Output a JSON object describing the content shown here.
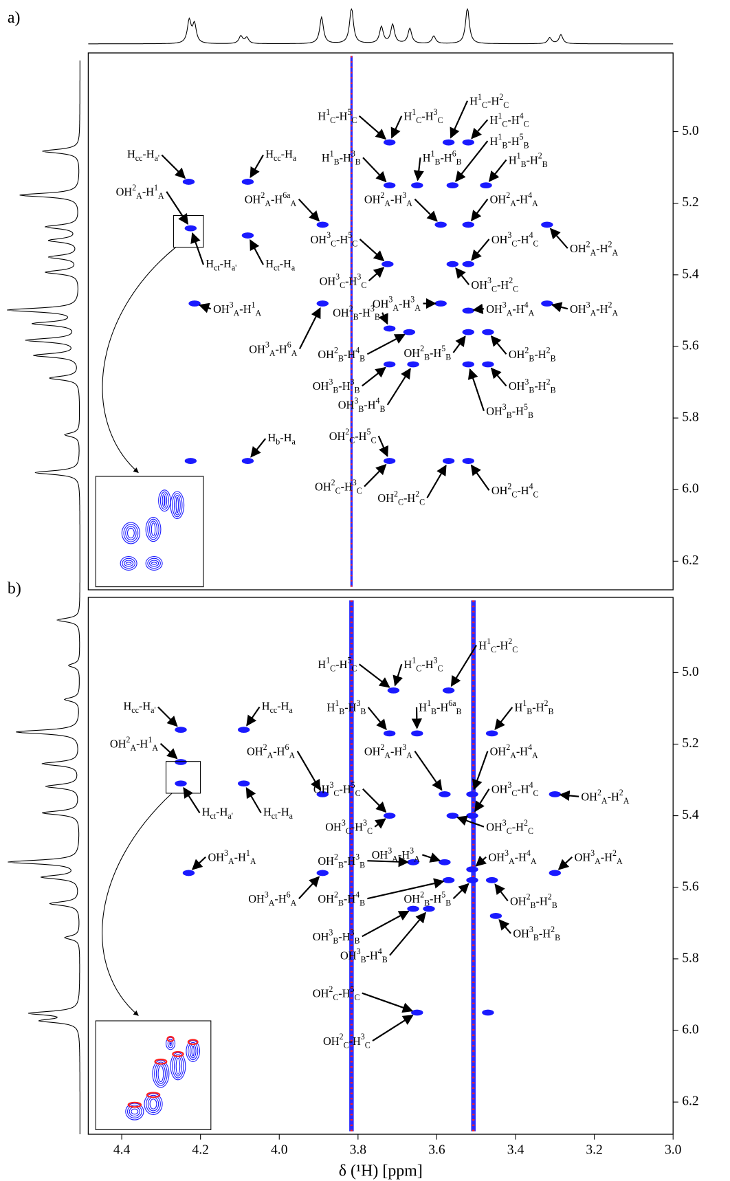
{
  "chart_data": [
    {
      "type": "scatter",
      "panel_label": "a)",
      "ylabel": "δ (¹H) [ppm]",
      "color": "#1a1aff",
      "xlim": [
        4.485,
        3.0
      ],
      "ylim": [
        4.78,
        6.28
      ],
      "yticks": [
        {
          "value": 5,
          "label": "5.0"
        },
        5.2,
        5.4,
        5.6,
        5.8,
        {
          "value": 6,
          "label": "6.0"
        },
        6.2
      ],
      "x": [
        4.23,
        4.08,
        4.225,
        4.08,
        4.215,
        3.89,
        3.72,
        3.67,
        3.72,
        3.57,
        3.52,
        3.72,
        3.65,
        3.56,
        3.475,
        3.59,
        3.52,
        3.32,
        3.725,
        3.56,
        3.52,
        3.59,
        3.52,
        3.32,
        3.52,
        3.47,
        3.72,
        3.66,
        3.52,
        3.47,
        4.08,
        4.225,
        3.72,
        3.57,
        3.52,
        3.89
      ],
      "y": [
        5.14,
        5.14,
        5.27,
        5.29,
        5.48,
        5.48,
        5.55,
        5.56,
        5.03,
        5.03,
        5.03,
        5.15,
        5.15,
        5.15,
        5.15,
        5.26,
        5.26,
        5.26,
        5.37,
        5.37,
        5.37,
        5.48,
        5.5,
        5.48,
        5.56,
        5.56,
        5.65,
        5.65,
        5.65,
        5.65,
        5.92,
        5.92,
        5.92,
        5.92,
        5.92,
        5.26
      ],
      "annotations": [
        "Hcc-Ha'",
        "Hcc-Ha",
        "OH2A-H1A",
        "Hct-Ha'",
        "Hct-Ha",
        "OH2A-H6aA",
        "OH3A-H1A",
        "OH3A-H6A",
        "OH2B-H3B",
        "OH2B-H4B",
        "H1C-H5C",
        "H1C-H3C",
        "H1C-H2C",
        "H1C-H4C",
        "H1B-H3B",
        "H1B-H6B",
        "H1B-H5B",
        "H1B-H2B",
        "OH2A-H3A",
        "OH2A-H4A",
        "OH2A-H2A",
        "OH3C-H5C",
        "OH3C-H3C",
        "OH3C-H4C",
        "OH3C-H2C",
        "OH3A-H3A",
        "OH3A-H4A",
        "OH3A-H2A",
        "OH2B-H5B",
        "OH2B-H2B",
        "OH3B-H3B",
        "OH3B-H4B",
        "OH3B-H5B",
        "OH3B-H2B",
        "Hb-Ha",
        "OH2C-H5C",
        "OH2C-H3C",
        "OH2C-H2C",
        "OH2C-H4C"
      ]
    },
    {
      "type": "scatter",
      "panel_label": "b)",
      "ylabel": "δ (¹H) [ppm]",
      "xlabel": "δ (¹H) [ppm]",
      "color": "#1a1aff",
      "xlim": [
        4.485,
        3.0
      ],
      "ylim": [
        4.79,
        6.29
      ],
      "xticks": [
        4.4,
        4.2,
        {
          "value": 4,
          "label": "4.0"
        },
        3.8,
        3.6,
        3.4,
        3.2,
        {
          "value": 3,
          "label": "3.0"
        }
      ],
      "yticks": [
        {
          "value": 5,
          "label": "5.0"
        },
        5.2,
        5.4,
        5.6,
        5.8,
        {
          "value": 6,
          "label": "6.0"
        },
        6.2
      ],
      "x": [
        4.25,
        4.09,
        4.25,
        4.25,
        4.09,
        4.23,
        3.89,
        3.89,
        3.71,
        3.57,
        3.72,
        3.65,
        3.46,
        3.58,
        3.51,
        3.3,
        3.72,
        3.56,
        3.51,
        3.66,
        3.58,
        3.51,
        3.3,
        3.57,
        3.51,
        3.46,
        3.66,
        3.62,
        3.45,
        3.65,
        3.47
      ],
      "y": [
        5.16,
        5.16,
        5.25,
        5.31,
        5.31,
        5.56,
        5.34,
        5.56,
        5.05,
        5.05,
        5.17,
        5.17,
        5.17,
        5.34,
        5.34,
        5.34,
        5.4,
        5.4,
        5.4,
        5.53,
        5.53,
        5.55,
        5.56,
        5.58,
        5.58,
        5.58,
        5.66,
        5.66,
        5.68,
        5.95,
        5.95
      ],
      "annotations": [
        "H1C-H5C",
        "H1C-H3C",
        "H1C-H2C",
        "Hcc-Ha'",
        "Hcc-Ha",
        "H1B-H3B",
        "H1B-H6aB",
        "H1B-H2B",
        "OH2A-H1A",
        "OH2A-H6A",
        "OH2A-H3A",
        "OH2A-H4A",
        "OH2A-H2A",
        "OH3C-H5C",
        "OH3C-H4C",
        "Hct-Ha'",
        "Hct-Ha",
        "OH3C-H3C",
        "OH3C-H2C",
        "OH3A-H1A",
        "OH2B-H3B",
        "OH3A-H3A",
        "OH3A-H4A",
        "OH3A-H2A",
        "OH3A-H6A",
        "OH2B-H4B",
        "OH2B-H5B",
        "OH2B-H2B",
        "OH3B-H3B",
        "OH3B-H4B",
        "OH3B-H2B",
        "OH2C-H5C",
        "OH2C-H3C"
      ]
    }
  ]
}
